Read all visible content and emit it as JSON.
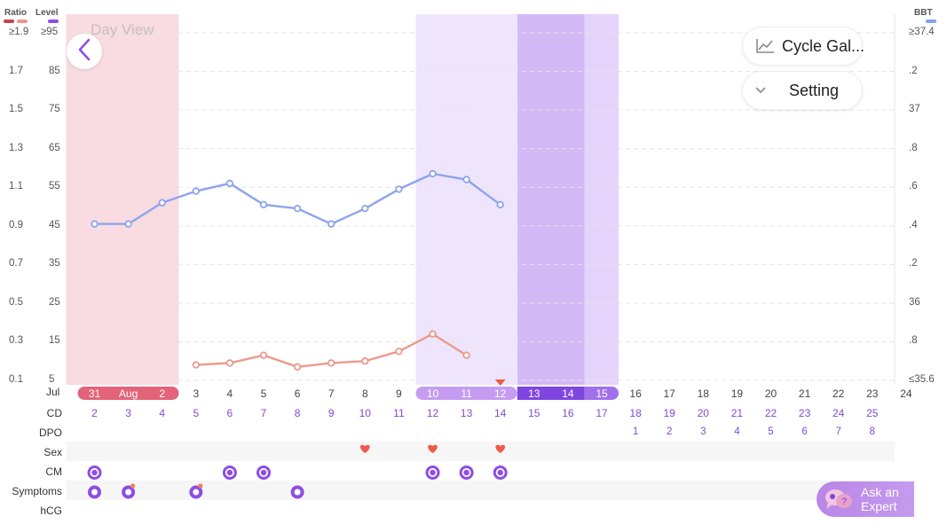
{
  "legend": {
    "ratio_label": "Ratio",
    "level_label": "Level",
    "bbt_label": "BBT",
    "ratio_color": "#c0444c",
    "ratio_color2": "#e9958a",
    "level_color": "#8e4de4",
    "bbt_color": "#8aa0ef"
  },
  "y_left_ratio": [
    "≥1.9",
    "1.7",
    "1.5",
    "1.3",
    "1.1",
    "0.9",
    "0.7",
    "0.5",
    "0.3",
    "0.1"
  ],
  "y_left_level": [
    "≥95",
    "85",
    "75",
    "65",
    "55",
    "45",
    "35",
    "25",
    "15",
    "5"
  ],
  "y_right_bbt": [
    "≥37.4",
    ".2",
    "37",
    ".8",
    ".6",
    ".4",
    ".2",
    "36",
    ".8",
    "≤35.6"
  ],
  "day_view_label": "Day View",
  "buttons": {
    "cycle_gallery": "Cycle Gal...",
    "setting": "Setting",
    "ask_expert_line1": "Ask an",
    "ask_expert_line2": "Expert"
  },
  "row_labels": {
    "cd": "CD",
    "dpo": "DPO",
    "sex": "Sex",
    "cm": "CM",
    "symptoms": "Symptoms",
    "hcg": "hCG"
  },
  "month_start": "Jul",
  "dates": [
    "31",
    "Aug",
    "2",
    "3",
    "4",
    "5",
    "6",
    "7",
    "8",
    "9",
    "10",
    "11",
    "12",
    "13",
    "14",
    "15",
    "16",
    "17",
    "18",
    "19",
    "20",
    "21",
    "22",
    "23",
    "24"
  ],
  "cd": [
    "2",
    "3",
    "4",
    "5",
    "6",
    "7",
    "8",
    "9",
    "10",
    "11",
    "12",
    "13",
    "14",
    "15",
    "16",
    "17",
    "18",
    "19",
    "20",
    "21",
    "22",
    "23",
    "24",
    "25",
    ""
  ],
  "dpo": [
    "",
    "",
    "",
    "",
    "",
    "",
    "",
    "",
    "",
    "",
    "",
    "",
    "",
    "",
    "",
    "",
    "1",
    "2",
    "3",
    "4",
    "5",
    "6",
    "7",
    "8",
    ""
  ],
  "chart_data": {
    "type": "line",
    "series": [
      {
        "values": [
          null,
          null,
          null,
          0.18,
          0.19,
          0.23,
          0.17,
          0.19,
          0.2,
          0.25,
          0.34,
          0.23,
          null,
          null,
          null,
          null,
          null,
          null,
          null,
          null,
          null,
          null,
          null,
          null,
          null
        ]
      },
      {
        "values": [
          45.5,
          45.5,
          51,
          54,
          56,
          50.5,
          49.5,
          45.5,
          49.5,
          54.5,
          58.5,
          57,
          50.5,
          null,
          null,
          null,
          null,
          null,
          null,
          null,
          null,
          null,
          null,
          null,
          null
        ]
      }
    ],
    "ylim_ratio": [
      0.1,
      1.9
    ],
    "ylim_level": [
      5,
      95
    ],
    "grid": true,
    "sex_days": [
      8,
      10,
      12
    ],
    "cm_days": [
      0,
      4,
      5,
      10,
      11,
      12
    ],
    "symptom_days": [
      0,
      1,
      3,
      6
    ],
    "ovulation_marker_day": 12
  }
}
